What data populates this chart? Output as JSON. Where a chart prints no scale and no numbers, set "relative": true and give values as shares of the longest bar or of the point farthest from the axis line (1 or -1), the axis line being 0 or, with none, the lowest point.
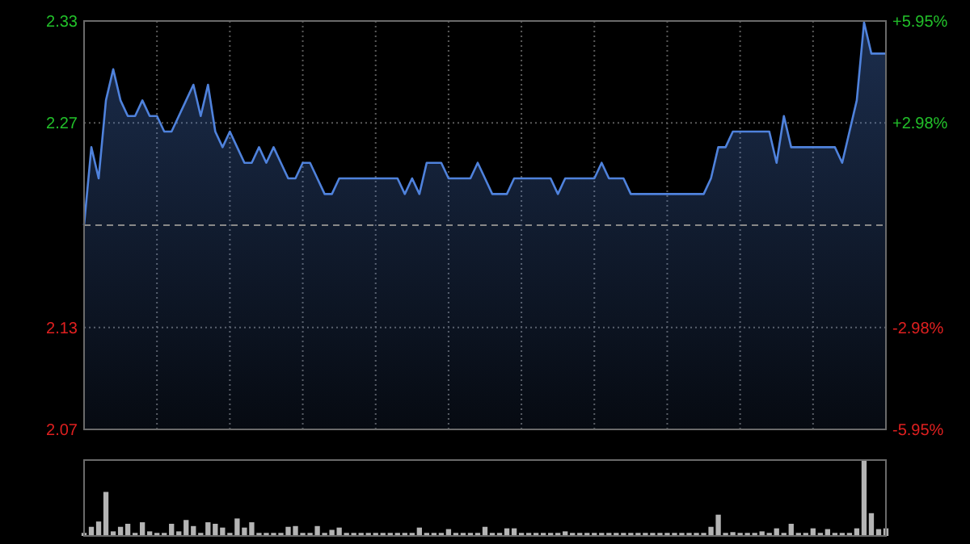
{
  "chart_data": [
    {
      "type": "area",
      "categories": [
        null,
        null,
        null,
        null,
        null,
        null,
        null,
        null,
        null,
        null,
        null,
        null,
        null,
        null,
        null,
        null,
        null,
        null,
        null,
        null,
        null,
        null,
        null,
        null,
        null,
        null,
        null,
        null,
        null,
        null,
        null,
        null,
        null,
        null,
        null,
        null,
        null,
        null,
        null,
        null,
        null,
        null,
        null,
        null,
        null,
        null,
        null,
        null,
        null,
        null,
        null,
        null,
        null,
        null,
        null,
        null,
        null,
        null,
        null,
        null,
        null,
        null,
        null,
        null,
        null,
        null,
        null,
        null,
        null,
        null,
        null,
        null,
        null,
        null,
        null,
        null,
        null,
        null,
        null,
        null,
        null,
        null,
        null,
        null,
        null,
        null,
        null,
        null,
        null,
        null,
        null,
        null,
        null,
        null,
        null,
        null,
        null,
        null,
        null,
        null,
        null,
        null,
        null,
        null,
        null,
        null,
        null,
        null,
        null,
        null,
        null
      ],
      "series": [
        {
          "color": "#4f82dc",
          "values": [
            2.2,
            2.25,
            2.23,
            2.28,
            2.3,
            2.28,
            2.27,
            2.27,
            2.28,
            2.27,
            2.27,
            2.26,
            2.26,
            2.27,
            2.28,
            2.29,
            2.27,
            2.29,
            2.26,
            2.25,
            2.26,
            2.25,
            2.24,
            2.24,
            2.25,
            2.24,
            2.25,
            2.24,
            2.23,
            2.23,
            2.24,
            2.24,
            2.23,
            2.22,
            2.22,
            2.23,
            2.23,
            2.23,
            2.23,
            2.23,
            2.23,
            2.23,
            2.23,
            2.23,
            2.22,
            2.23,
            2.22,
            2.24,
            2.24,
            2.24,
            2.23,
            2.23,
            2.23,
            2.23,
            2.24,
            2.23,
            2.22,
            2.22,
            2.22,
            2.23,
            2.23,
            2.23,
            2.23,
            2.23,
            2.23,
            2.22,
            2.23,
            2.23,
            2.23,
            2.23,
            2.23,
            2.24,
            2.23,
            2.23,
            2.23,
            2.22,
            2.22,
            2.22,
            2.22,
            2.22,
            2.22,
            2.22,
            2.22,
            2.22,
            2.22,
            2.22,
            2.23,
            2.25,
            2.25,
            2.26,
            2.26,
            2.26,
            2.26,
            2.26,
            2.26,
            2.24,
            2.27,
            2.25,
            2.25,
            2.25,
            2.25,
            2.25,
            2.25,
            2.25,
            2.24,
            2.26,
            2.28,
            2.33,
            2.31,
            2.31,
            2.31
          ]
        }
      ],
      "ylim": [
        2.0691,
        2.3309
      ],
      "yticks": [
        {
          "value": 2.0691,
          "label": "2.07"
        },
        {
          "value": 2.1344,
          "label": "2.13"
        },
        {
          "value": 2.2656,
          "label": "2.27"
        },
        {
          "value": 2.3309,
          "label": "2.33"
        }
      ],
      "y2lim": [
        -5.95,
        5.95
      ],
      "y2ticks": [
        {
          "value": -5.95,
          "label": "-5.95%"
        },
        {
          "value": -2.98,
          "label": "-2.98%"
        },
        {
          "value": 2.98,
          "label": "+2.98%"
        },
        {
          "value": 5.95,
          "label": "+5.95%"
        }
      ],
      "ref_lines": [
        {
          "axis": "y",
          "value": 2.2,
          "line_style": "dashed"
        }
      ],
      "grid": true
    },
    {
      "type": "bar",
      "relative": true,
      "categories": [
        null,
        null,
        null,
        null,
        null,
        null,
        null,
        null,
        null,
        null,
        null,
        null,
        null,
        null,
        null,
        null,
        null,
        null,
        null,
        null,
        null,
        null,
        null,
        null,
        null,
        null,
        null,
        null,
        null,
        null,
        null,
        null,
        null,
        null,
        null,
        null,
        null,
        null,
        null,
        null,
        null,
        null,
        null,
        null,
        null,
        null,
        null,
        null,
        null,
        null,
        null,
        null,
        null,
        null,
        null,
        null,
        null,
        null,
        null,
        null,
        null,
        null,
        null,
        null,
        null,
        null,
        null,
        null,
        null,
        null,
        null,
        null,
        null,
        null,
        null,
        null,
        null,
        null,
        null,
        null,
        null,
        null,
        null,
        null,
        null,
        null,
        null,
        null,
        null,
        null,
        null,
        null,
        null,
        null,
        null,
        null,
        null,
        null,
        null,
        null,
        null,
        null,
        null,
        null,
        null,
        null,
        null,
        null,
        null,
        null,
        null
      ],
      "values": [
        0.04,
        0.12,
        0.19,
        0.58,
        0.06,
        0.12,
        0.16,
        0.04,
        0.18,
        0.06,
        0.04,
        0.04,
        0.16,
        0.06,
        0.21,
        0.13,
        0.04,
        0.18,
        0.16,
        0.11,
        0.04,
        0.23,
        0.11,
        0.18,
        0.04,
        0.04,
        0.04,
        0.04,
        0.12,
        0.13,
        0.04,
        0.04,
        0.13,
        0.04,
        0.08,
        0.11,
        0.04,
        0.04,
        0.04,
        0.04,
        0.04,
        0.04,
        0.04,
        0.04,
        0.04,
        0.04,
        0.11,
        0.04,
        0.04,
        0.04,
        0.09,
        0.04,
        0.04,
        0.04,
        0.04,
        0.12,
        0.04,
        0.04,
        0.1,
        0.1,
        0.04,
        0.04,
        0.04,
        0.04,
        0.04,
        0.04,
        0.06,
        0.04,
        0.04,
        0.04,
        0.04,
        0.04,
        0.04,
        0.04,
        0.04,
        0.04,
        0.04,
        0.04,
        0.04,
        0.04,
        0.04,
        0.04,
        0.04,
        0.04,
        0.04,
        0.04,
        0.12,
        0.28,
        0.04,
        0.05,
        0.04,
        0.04,
        0.04,
        0.06,
        0.04,
        0.1,
        0.04,
        0.16,
        0.04,
        0.04,
        0.1,
        0.04,
        0.09,
        0.04,
        0.04,
        0.04,
        0.1,
        1,
        0.3,
        0.09,
        0.1
      ],
      "color": "#b4b4b4"
    }
  ]
}
